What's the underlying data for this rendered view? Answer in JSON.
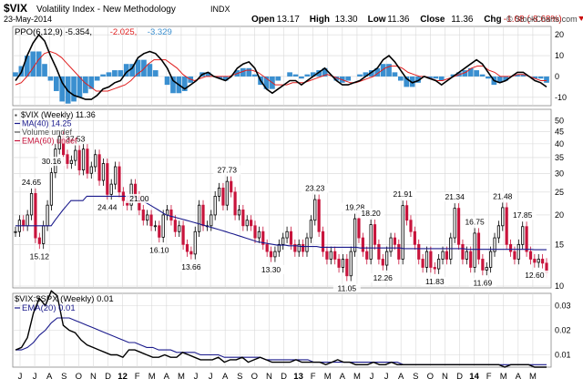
{
  "header": {
    "symbol": "$VIX",
    "name": "Volatility Index - New Methodology",
    "exchange": "INDX",
    "date": "23-May-2014",
    "watermark": "© StockCharts.com",
    "quote": [
      {
        "label": "Open",
        "value": "13.17"
      },
      {
        "label": "High",
        "value": "13.30"
      },
      {
        "label": "Low",
        "value": "11.36"
      },
      {
        "label": "Close",
        "value": "11.36"
      },
      {
        "label": "Chg",
        "value": "-1.08 (-8.68%)"
      }
    ]
  },
  "colors": {
    "histogram": "#3a8fd0",
    "ppo_line": "#000000",
    "signal_line": "#e02020",
    "up_bar": "#000000",
    "down_bar": "#c8143c",
    "ma_line": "#1a1a8c",
    "grid": "#d8d8d8",
    "negative": "#cc1111"
  },
  "chart_data": [
    {
      "type": "line",
      "title": "PPO(6,12,9)",
      "legend": [
        {
          "text": "PPO(6,12,9) -5.354,",
          "color": "#000000"
        },
        {
          "text": "-2.025,",
          "color": "#e02020"
        },
        {
          "text": "-3.329",
          "color": "#3a8fd0"
        }
      ],
      "ylim": [
        -14,
        24
      ],
      "yticks": [
        20,
        10,
        0,
        -10
      ],
      "series": [
        {
          "name": "PPO",
          "values": [
            -2,
            2,
            10,
            16,
            20,
            17,
            10,
            4,
            -3,
            -7,
            -9,
            -10,
            -11,
            -11,
            -9,
            -6,
            -5,
            -3,
            -2,
            2,
            4,
            9,
            11,
            12,
            11,
            8,
            4,
            -2,
            -4,
            -6,
            -4,
            -2,
            1,
            2,
            0,
            -1,
            -2,
            0,
            4,
            6,
            7,
            4,
            -2,
            -6,
            -8,
            -6,
            -4,
            -2,
            -2,
            -4,
            -2,
            0,
            2,
            4,
            1,
            -2,
            -4,
            -4,
            -3,
            -2,
            0,
            2,
            4,
            8,
            10,
            7,
            3,
            -1,
            -3,
            -2,
            0,
            -1,
            -2,
            -4,
            -2,
            0,
            2,
            4,
            6,
            8,
            6,
            2,
            -2,
            -3,
            -2,
            0,
            2,
            2,
            0,
            -2,
            -3,
            -5
          ]
        },
        {
          "name": "Signal",
          "values": [
            -4,
            -3,
            0,
            4,
            8,
            11,
            12,
            11,
            9,
            6,
            3,
            0,
            -3,
            -5,
            -7,
            -7,
            -7,
            -6,
            -5,
            -4,
            -2,
            1,
            3,
            6,
            8,
            8,
            8,
            6,
            4,
            1,
            -1,
            -2,
            -1,
            0,
            0,
            0,
            0,
            0,
            1,
            2,
            3,
            3,
            2,
            0,
            -2,
            -4,
            -4,
            -4,
            -3,
            -3,
            -3,
            -2,
            -1,
            0,
            1,
            0,
            -1,
            -2,
            -3,
            -3,
            -2,
            -1,
            0,
            2,
            4,
            5,
            5,
            4,
            2,
            1,
            0,
            0,
            -1,
            -2,
            -2,
            -1,
            0,
            1,
            2,
            4,
            5,
            5,
            3,
            2,
            0,
            0,
            0,
            1,
            1,
            0,
            -1,
            -2,
            -2
          ]
        },
        {
          "name": "Histogram",
          "values": [
            2,
            5,
            10,
            12,
            12,
            6,
            -2,
            -7,
            -12,
            -13,
            -12,
            -10,
            -8,
            -6,
            -2,
            1,
            2,
            3,
            3,
            6,
            6,
            8,
            8,
            6,
            3,
            0,
            -4,
            -8,
            -8,
            -7,
            -3,
            0,
            2,
            2,
            0,
            -1,
            -2,
            0,
            3,
            4,
            4,
            1,
            -4,
            -6,
            -6,
            -2,
            0,
            2,
            1,
            -1,
            1,
            2,
            3,
            4,
            0,
            -2,
            -3,
            -2,
            0,
            1,
            2,
            3,
            4,
            6,
            6,
            2,
            -2,
            -5,
            -5,
            -3,
            0,
            -1,
            -1,
            -2,
            0,
            1,
            2,
            3,
            4,
            3,
            1,
            -1,
            -4,
            -3,
            -2,
            0,
            1,
            1,
            0,
            -1,
            -1,
            -3
          ]
        }
      ]
    },
    {
      "type": "bar",
      "title": "$VIX (Weekly) 11.36",
      "legend": [
        {
          "text": "$VIX (Weekly) 11.36",
          "color": "#000000"
        },
        {
          "text": "MA(40) 14.25",
          "color": "#1a1a8c"
        },
        {
          "text": "Volume undef",
          "color": "#555555"
        },
        {
          "text": "EMA(60) undef",
          "color": "#c8143c"
        }
      ],
      "scale": "log",
      "ylim": [
        10,
        55
      ],
      "yticks": [
        50,
        45,
        40,
        35,
        30,
        25,
        20,
        15,
        10
      ],
      "series": [
        {
          "name": "$VIX",
          "values": [
            17,
            19,
            18,
            20,
            24.65,
            16,
            15.12,
            18,
            22,
            30.16,
            38,
            43,
            36,
            33,
            34,
            37.53,
            31,
            38,
            30,
            32,
            36,
            28,
            33,
            24.44,
            27,
            32,
            25,
            23,
            22,
            27,
            24,
            21,
            19,
            20,
            18,
            18,
            16.1,
            20,
            21,
            19,
            17,
            18,
            15,
            14,
            13.66,
            17,
            22,
            18,
            18,
            20,
            24,
            26,
            22,
            27.73,
            25,
            20,
            21,
            18,
            19,
            18,
            16,
            17,
            15,
            14,
            13.3,
            14,
            15,
            16,
            17,
            15,
            14,
            15,
            14,
            16,
            19,
            23.23,
            17,
            14,
            13,
            14,
            13,
            12,
            13,
            11.05,
            14,
            19.28,
            16,
            14,
            13,
            18.2,
            15,
            13,
            12.26,
            14,
            16,
            15,
            13,
            21.91,
            19,
            17,
            15,
            13,
            12,
            14,
            12,
            11.83,
            13,
            14,
            13,
            16,
            21.34,
            15,
            13,
            14,
            12,
            16.75,
            13,
            11.69,
            12,
            14,
            16,
            18,
            21.48,
            15,
            14,
            13,
            15,
            17.85,
            14,
            13,
            12.6,
            13,
            12.5,
            11.36
          ]
        },
        {
          "name": "MA(40)",
          "values": [
            18,
            18,
            18,
            18,
            18,
            18,
            18,
            18,
            18,
            18,
            19,
            20,
            21,
            22,
            23,
            23,
            23,
            23,
            24,
            24,
            24,
            24,
            24,
            24,
            24,
            24,
            24,
            24,
            24,
            24,
            24,
            23.5,
            23,
            22.5,
            22,
            21.5,
            21,
            20.5,
            20,
            19.8,
            19.6,
            19.4,
            19.2,
            19,
            18.8,
            18.6,
            18.4,
            18.2,
            18,
            17.8,
            17.6,
            17.4,
            17.2,
            17,
            16.8,
            16.6,
            16.4,
            16.2,
            16,
            15.8,
            15.6,
            15.4,
            15.3,
            15.2,
            15.1,
            15,
            14.9,
            14.9,
            14.9,
            14.8,
            14.8,
            14.8,
            14.7,
            14.7,
            14.7,
            14.7,
            14.7,
            14.6,
            14.6,
            14.6,
            14.6,
            14.6,
            14.6,
            14.6,
            14.6,
            14.6,
            14.6,
            14.5,
            14.5,
            14.5,
            14.5,
            14.5,
            14.5,
            14.5,
            14.5,
            14.5,
            14.5,
            14.5,
            14.4,
            14.4,
            14.4,
            14.4,
            14.4,
            14.4,
            14.4,
            14.4,
            14.4,
            14.4,
            14.4,
            14.4,
            14.4,
            14.4,
            14.4,
            14.4,
            14.3,
            14.3,
            14.3,
            14.3,
            14.3,
            14.3,
            14.3,
            14.3,
            14.3,
            14.3,
            14.3,
            14.3,
            14.3,
            14.3,
            14.3,
            14.3,
            14.3,
            14.25,
            14.25,
            14.25,
            14.25
          ]
        }
      ],
      "annotations": [
        "24.65",
        "15.12",
        "30.16",
        "37.53",
        "24.44",
        "16.10",
        "13.66",
        "27.73",
        "21.00",
        "13.30",
        "23.23",
        "11.05",
        "19.28",
        "18.20",
        "12.26",
        "21.91",
        "11.83",
        "21.34",
        "16.75",
        "11.69",
        "21.48",
        "17.85",
        "12.60"
      ]
    },
    {
      "type": "line",
      "title": "$VIX:$SPX (Weekly) 0.01",
      "legend": [
        {
          "text": "$VIX:$SPX (Weekly) 0.01",
          "color": "#000000"
        },
        {
          "text": "EMA(20) 0.01",
          "color": "#1a1a8c"
        }
      ],
      "ylim": [
        0.005,
        0.035
      ],
      "yticks": [
        0.03,
        0.02,
        0.01
      ],
      "series": [
        {
          "name": "$VIX:$SPX",
          "values": [
            0.012,
            0.013,
            0.017,
            0.027,
            0.033,
            0.03,
            0.036,
            0.034,
            0.022,
            0.02,
            0.019,
            0.016,
            0.014,
            0.013,
            0.012,
            0.011,
            0.01,
            0.01,
            0.009,
            0.012,
            0.012,
            0.011,
            0.01,
            0.009,
            0.009,
            0.01,
            0.009,
            0.009,
            0.011,
            0.01,
            0.009,
            0.008,
            0.008,
            0.008,
            0.009,
            0.007,
            0.008,
            0.008,
            0.009,
            0.007,
            0.008,
            0.009,
            0.008,
            0.007,
            0.007,
            0.007,
            0.007,
            0.008,
            0.007,
            0.007,
            0.007,
            0.007,
            0.006,
            0.007,
            0.008,
            0.007,
            0.007,
            0.006,
            0.006,
            0.006,
            0.007,
            0.006,
            0.006,
            0.007,
            0.006,
            0.006,
            0.006,
            0.006,
            0.006,
            0.006,
            0.006,
            0.006,
            0.006,
            0.006,
            0.006,
            0.006,
            0.006,
            0.006,
            0.006,
            0.006,
            0.006,
            0.006,
            0.005,
            0.006,
            0.006,
            0.006,
            0.006,
            0.005,
            0.005,
            0.005
          ]
        },
        {
          "name": "EMA(20)",
          "values": [
            0.012,
            0.012,
            0.013,
            0.015,
            0.018,
            0.02,
            0.023,
            0.025,
            0.025,
            0.025,
            0.024,
            0.023,
            0.022,
            0.021,
            0.02,
            0.019,
            0.018,
            0.017,
            0.016,
            0.015,
            0.015,
            0.014,
            0.013,
            0.013,
            0.012,
            0.012,
            0.012,
            0.011,
            0.011,
            0.011,
            0.011,
            0.01,
            0.01,
            0.01,
            0.01,
            0.009,
            0.009,
            0.009,
            0.009,
            0.009,
            0.009,
            0.009,
            0.008,
            0.008,
            0.008,
            0.008,
            0.008,
            0.008,
            0.008,
            0.008,
            0.007,
            0.007,
            0.007,
            0.007,
            0.007,
            0.007,
            0.007,
            0.007,
            0.007,
            0.007,
            0.007,
            0.007,
            0.007,
            0.007,
            0.007,
            0.006,
            0.006,
            0.006,
            0.006,
            0.006,
            0.006,
            0.006,
            0.006,
            0.006,
            0.006,
            0.006,
            0.006,
            0.006,
            0.006,
            0.006,
            0.006,
            0.006,
            0.006,
            0.006,
            0.006,
            0.006,
            0.006,
            0.006,
            0.006,
            0.006
          ]
        }
      ]
    }
  ],
  "x_axis": {
    "labels": [
      "J",
      "J",
      "A",
      "S",
      "O",
      "N",
      "D",
      "12",
      "F",
      "M",
      "A",
      "M",
      "J",
      "J",
      "A",
      "S",
      "O",
      "N",
      "D",
      "13",
      "F",
      "M",
      "A",
      "M",
      "J",
      "J",
      "A",
      "S",
      "O",
      "N",
      "D",
      "14",
      "F",
      "M",
      "A",
      "M"
    ],
    "bold": [
      "12",
      "13",
      "14"
    ]
  }
}
